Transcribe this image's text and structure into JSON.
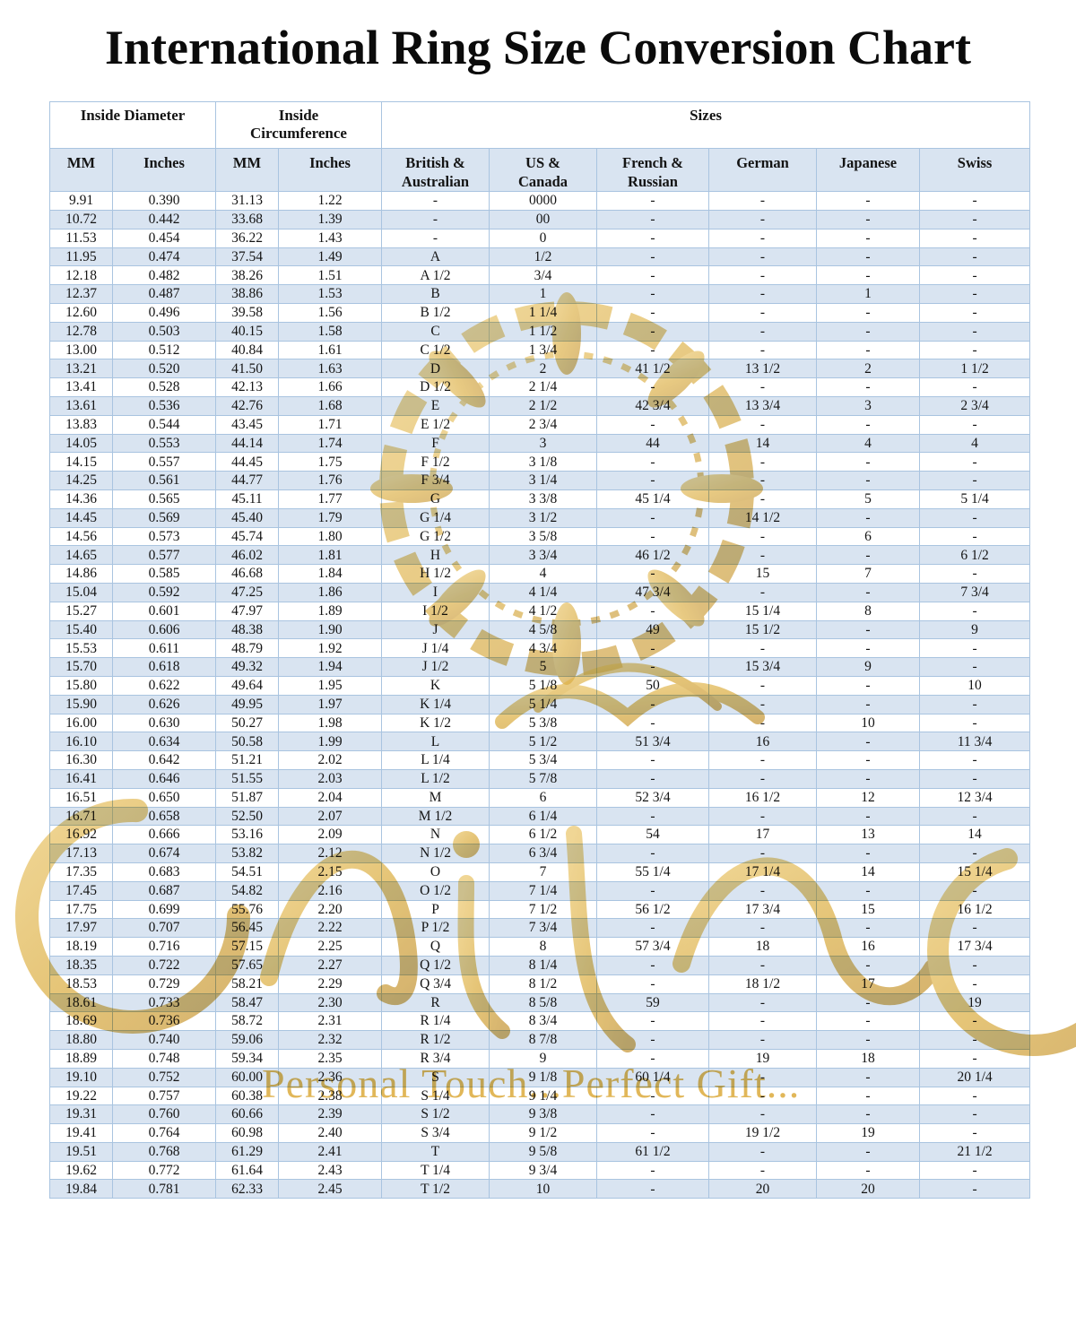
{
  "page_title": "International Ring Size Conversion Chart",
  "watermark": {
    "text": "Personal Touch...Perfect Gift...",
    "ornament_names": [
      "mandala-ornament",
      "crown-ornament",
      "script-swirl-ornament"
    ]
  },
  "colors": {
    "row_alt_blue": "#d9e4f1",
    "grid_border": "#a9c4e0",
    "header_underline": "#9db9da",
    "watermark_gold": "#d8a63a",
    "text": "#141414"
  },
  "table": {
    "group_headers": [
      {
        "label": "Inside Diameter",
        "colspan": 2,
        "wrap": false
      },
      {
        "label": "Inside Circumference",
        "colspan": 2,
        "wrap": true
      },
      {
        "label": "Sizes",
        "colspan": 6,
        "wrap": false
      }
    ],
    "column_headers": [
      "MM",
      "Inches",
      "MM",
      "Inches",
      "British & Australian",
      "US & Canada",
      "French & Russian",
      "German",
      "Japanese",
      "Swiss"
    ],
    "rows": [
      [
        "9.91",
        "0.390",
        "31.13",
        "1.22",
        "-",
        "0000",
        "-",
        "-",
        "-",
        "-"
      ],
      [
        "10.72",
        "0.442",
        "33.68",
        "1.39",
        "-",
        "00",
        "-",
        "-",
        "-",
        "-"
      ],
      [
        "11.53",
        "0.454",
        "36.22",
        "1.43",
        "-",
        "0",
        "-",
        "-",
        "-",
        "-"
      ],
      [
        "11.95",
        "0.474",
        "37.54",
        "1.49",
        "A",
        "1/2",
        "-",
        "-",
        "-",
        "-"
      ],
      [
        "12.18",
        "0.482",
        "38.26",
        "1.51",
        "A 1/2",
        "3/4",
        "-",
        "-",
        "-",
        "-"
      ],
      [
        "12.37",
        "0.487",
        "38.86",
        "1.53",
        "B",
        "1",
        "-",
        "-",
        "1",
        "-"
      ],
      [
        "12.60",
        "0.496",
        "39.58",
        "1.56",
        "B 1/2",
        "1 1/4",
        "-",
        "-",
        "-",
        "-"
      ],
      [
        "12.78",
        "0.503",
        "40.15",
        "1.58",
        "C",
        "1 1/2",
        "-",
        "-",
        "-",
        "-"
      ],
      [
        "13.00",
        "0.512",
        "40.84",
        "1.61",
        "C 1/2",
        "1 3/4",
        "-",
        "-",
        "-",
        "-"
      ],
      [
        "13.21",
        "0.520",
        "41.50",
        "1.63",
        "D",
        "2",
        "41 1/2",
        "13 1/2",
        "2",
        "1 1/2"
      ],
      [
        "13.41",
        "0.528",
        "42.13",
        "1.66",
        "D 1/2",
        "2 1/4",
        "-",
        "-",
        "-",
        "-"
      ],
      [
        "13.61",
        "0.536",
        "42.76",
        "1.68",
        "E",
        "2 1/2",
        "42 3/4",
        "13 3/4",
        "3",
        "2 3/4"
      ],
      [
        "13.83",
        "0.544",
        "43.45",
        "1.71",
        "E 1/2",
        "2 3/4",
        "-",
        "-",
        "-",
        "-"
      ],
      [
        "14.05",
        "0.553",
        "44.14",
        "1.74",
        "F",
        "3",
        "44",
        "14",
        "4",
        "4"
      ],
      [
        "14.15",
        "0.557",
        "44.45",
        "1.75",
        "F 1/2",
        "3 1/8",
        "-",
        "-",
        "-",
        "-"
      ],
      [
        "14.25",
        "0.561",
        "44.77",
        "1.76",
        "F 3/4",
        "3 1/4",
        "-",
        "-",
        "-",
        "-"
      ],
      [
        "14.36",
        "0.565",
        "45.11",
        "1.77",
        "G",
        "3 3/8",
        "45 1/4",
        "-",
        "5",
        "5 1/4"
      ],
      [
        "14.45",
        "0.569",
        "45.40",
        "1.79",
        "G 1/4",
        "3 1/2",
        "-",
        "14 1/2",
        "-",
        "-"
      ],
      [
        "14.56",
        "0.573",
        "45.74",
        "1.80",
        "G 1/2",
        "3 5/8",
        "-",
        "-",
        "6",
        "-"
      ],
      [
        "14.65",
        "0.577",
        "46.02",
        "1.81",
        "H",
        "3 3/4",
        "46 1/2",
        "-",
        "-",
        "6 1/2"
      ],
      [
        "14.86",
        "0.585",
        "46.68",
        "1.84",
        "H 1/2",
        "4",
        "-",
        "15",
        "7",
        "-"
      ],
      [
        "15.04",
        "0.592",
        "47.25",
        "1.86",
        "I",
        "4 1/4",
        "47 3/4",
        "-",
        "-",
        "7 3/4"
      ],
      [
        "15.27",
        "0.601",
        "47.97",
        "1.89",
        "I 1/2",
        "4 1/2",
        "-",
        "15 1/4",
        "8",
        "-"
      ],
      [
        "15.40",
        "0.606",
        "48.38",
        "1.90",
        "J",
        "4 5/8",
        "49",
        "15 1/2",
        "-",
        "9"
      ],
      [
        "15.53",
        "0.611",
        "48.79",
        "1.92",
        "J 1/4",
        "4 3/4",
        "-",
        "-",
        "-",
        "-"
      ],
      [
        "15.70",
        "0.618",
        "49.32",
        "1.94",
        "J 1/2",
        "5",
        "-",
        "15 3/4",
        "9",
        "-"
      ],
      [
        "15.80",
        "0.622",
        "49.64",
        "1.95",
        "K",
        "5 1/8",
        "50",
        "-",
        "-",
        "10"
      ],
      [
        "15.90",
        "0.626",
        "49.95",
        "1.97",
        "K 1/4",
        "5 1/4",
        "-",
        "-",
        "-",
        "-"
      ],
      [
        "16.00",
        "0.630",
        "50.27",
        "1.98",
        "K 1/2",
        "5 3/8",
        "-",
        "-",
        "10",
        "-"
      ],
      [
        "16.10",
        "0.634",
        "50.58",
        "1.99",
        "L",
        "5 1/2",
        "51 3/4",
        "16",
        "-",
        "11 3/4"
      ],
      [
        "16.30",
        "0.642",
        "51.21",
        "2.02",
        "L 1/4",
        "5 3/4",
        "-",
        "-",
        "-",
        "-"
      ],
      [
        "16.41",
        "0.646",
        "51.55",
        "2.03",
        "L 1/2",
        "5 7/8",
        "-",
        "-",
        "-",
        "-"
      ],
      [
        "16.51",
        "0.650",
        "51.87",
        "2.04",
        "M",
        "6",
        "52 3/4",
        "16 1/2",
        "12",
        "12 3/4"
      ],
      [
        "16.71",
        "0.658",
        "52.50",
        "2.07",
        "M 1/2",
        "6 1/4",
        "-",
        "-",
        "-",
        "-"
      ],
      [
        "16.92",
        "0.666",
        "53.16",
        "2.09",
        "N",
        "6 1/2",
        "54",
        "17",
        "13",
        "14"
      ],
      [
        "17.13",
        "0.674",
        "53.82",
        "2.12",
        "N 1/2",
        "6 3/4",
        "-",
        "-",
        "-",
        "-"
      ],
      [
        "17.35",
        "0.683",
        "54.51",
        "2.15",
        "O",
        "7",
        "55 1/4",
        "17 1/4",
        "14",
        "15 1/4"
      ],
      [
        "17.45",
        "0.687",
        "54.82",
        "2.16",
        "O 1/2",
        "7 1/4",
        "-",
        "-",
        "-",
        "-"
      ],
      [
        "17.75",
        "0.699",
        "55.76",
        "2.20",
        "P",
        "7 1/2",
        "56 1/2",
        "17 3/4",
        "15",
        "16 1/2"
      ],
      [
        "17.97",
        "0.707",
        "56.45",
        "2.22",
        "P 1/2",
        "7 3/4",
        "-",
        "-",
        "-",
        "-"
      ],
      [
        "18.19",
        "0.716",
        "57.15",
        "2.25",
        "Q",
        "8",
        "57 3/4",
        "18",
        "16",
        "17 3/4"
      ],
      [
        "18.35",
        "0.722",
        "57.65",
        "2.27",
        "Q 1/2",
        "8 1/4",
        "-",
        "-",
        "-",
        "-"
      ],
      [
        "18.53",
        "0.729",
        "58.21",
        "2.29",
        "Q 3/4",
        "8 1/2",
        "-",
        "18 1/2",
        "17",
        "-"
      ],
      [
        "18.61",
        "0.733",
        "58.47",
        "2.30",
        "R",
        "8 5/8",
        "59",
        "-",
        "-",
        "19"
      ],
      [
        "18.69",
        "0.736",
        "58.72",
        "2.31",
        "R 1/4",
        "8 3/4",
        "-",
        "-",
        "-",
        "-"
      ],
      [
        "18.80",
        "0.740",
        "59.06",
        "2.32",
        "R 1/2",
        "8 7/8",
        "-",
        "-",
        "-",
        "-"
      ],
      [
        "18.89",
        "0.748",
        "59.34",
        "2.35",
        "R 3/4",
        "9",
        "-",
        "19",
        "18",
        "-"
      ],
      [
        "19.10",
        "0.752",
        "60.00",
        "2.36",
        "S",
        "9 1/8",
        "60 1/4",
        "-",
        "-",
        "20 1/4"
      ],
      [
        "19.22",
        "0.757",
        "60.38",
        "2.38",
        "S 1/4",
        "9 1/4",
        "-",
        "-",
        "-",
        "-"
      ],
      [
        "19.31",
        "0.760",
        "60.66",
        "2.39",
        "S 1/2",
        "9 3/8",
        "-",
        "-",
        "-",
        "-"
      ],
      [
        "19.41",
        "0.764",
        "60.98",
        "2.40",
        "S 3/4",
        "9 1/2",
        "-",
        "19 1/2",
        "19",
        "-"
      ],
      [
        "19.51",
        "0.768",
        "61.29",
        "2.41",
        "T",
        "9 5/8",
        "61 1/2",
        "-",
        "-",
        "21 1/2"
      ],
      [
        "19.62",
        "0.772",
        "61.64",
        "2.43",
        "T 1/4",
        "9 3/4",
        "-",
        "-",
        "-",
        "-"
      ],
      [
        "19.84",
        "0.781",
        "62.33",
        "2.45",
        "T 1/2",
        "10",
        "-",
        "20",
        "20",
        "-"
      ]
    ]
  }
}
